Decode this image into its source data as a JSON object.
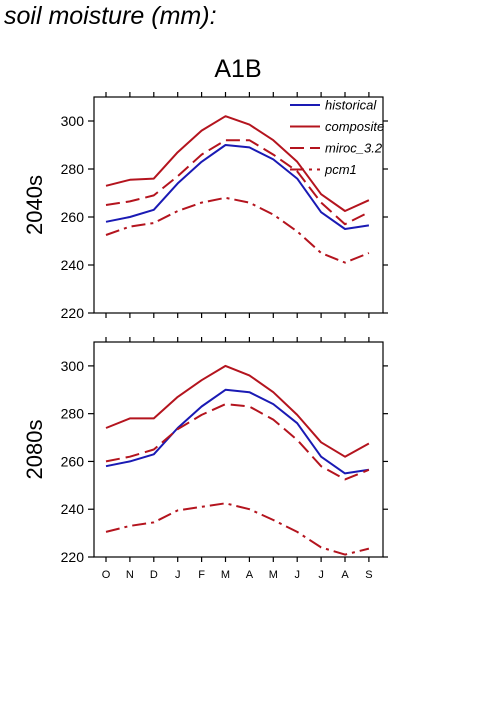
{
  "page_title": "soil moisture (mm):",
  "scenario": "A1B",
  "colors": {
    "historical": "#1a1ab4",
    "model": "#b4141e",
    "axis": "#000000"
  },
  "chart_data": [
    {
      "type": "line",
      "panel_label": "2040s",
      "categories": [
        "O",
        "N",
        "D",
        "J",
        "F",
        "M",
        "A",
        "M",
        "J",
        "J",
        "A",
        "S"
      ],
      "ylim": [
        220,
        310
      ],
      "yticks": [
        220,
        240,
        260,
        280,
        300
      ],
      "legend": "top-right",
      "series": [
        {
          "name": "historical",
          "style": "solid",
          "values": [
            258,
            260,
            263,
            274,
            283,
            290,
            289,
            284,
            276,
            262,
            255,
            256.5
          ]
        },
        {
          "name": "composite",
          "style": "solid",
          "values": [
            273,
            275.5,
            276,
            287,
            296,
            302,
            298.5,
            292,
            283,
            269.5,
            262.5,
            267
          ]
        },
        {
          "name": "miroc_3.2",
          "style": "dashed",
          "values": [
            265,
            266.5,
            269,
            277,
            286,
            292,
            292,
            286,
            279,
            266,
            257,
            262
          ]
        },
        {
          "name": "pcm1",
          "style": "dashdot",
          "values": [
            252.5,
            256,
            257.5,
            262.5,
            266,
            268,
            266,
            261,
            254,
            245,
            241,
            245
          ]
        }
      ]
    },
    {
      "type": "line",
      "panel_label": "2080s",
      "categories": [
        "O",
        "N",
        "D",
        "J",
        "F",
        "M",
        "A",
        "M",
        "J",
        "J",
        "A",
        "S"
      ],
      "ylim": [
        220,
        310
      ],
      "yticks": [
        220,
        240,
        260,
        280,
        300
      ],
      "series": [
        {
          "name": "historical",
          "style": "solid",
          "values": [
            258,
            260,
            263,
            274,
            283,
            290,
            289,
            284,
            276,
            262,
            255,
            256.5
          ]
        },
        {
          "name": "composite",
          "style": "solid",
          "values": [
            274,
            278,
            278,
            287,
            294,
            300,
            296,
            289,
            279.5,
            268,
            262,
            267.5
          ]
        },
        {
          "name": "miroc_3.2",
          "style": "dashed",
          "values": [
            260,
            262,
            265,
            273.5,
            279.5,
            284,
            283,
            277.5,
            269,
            258,
            252.5,
            256.5
          ]
        },
        {
          "name": "pcm1",
          "style": "dashdot",
          "values": [
            230.5,
            233,
            234.5,
            239.5,
            241,
            242.5,
            240,
            235.5,
            230.5,
            224,
            221,
            223.5
          ]
        }
      ]
    }
  ]
}
